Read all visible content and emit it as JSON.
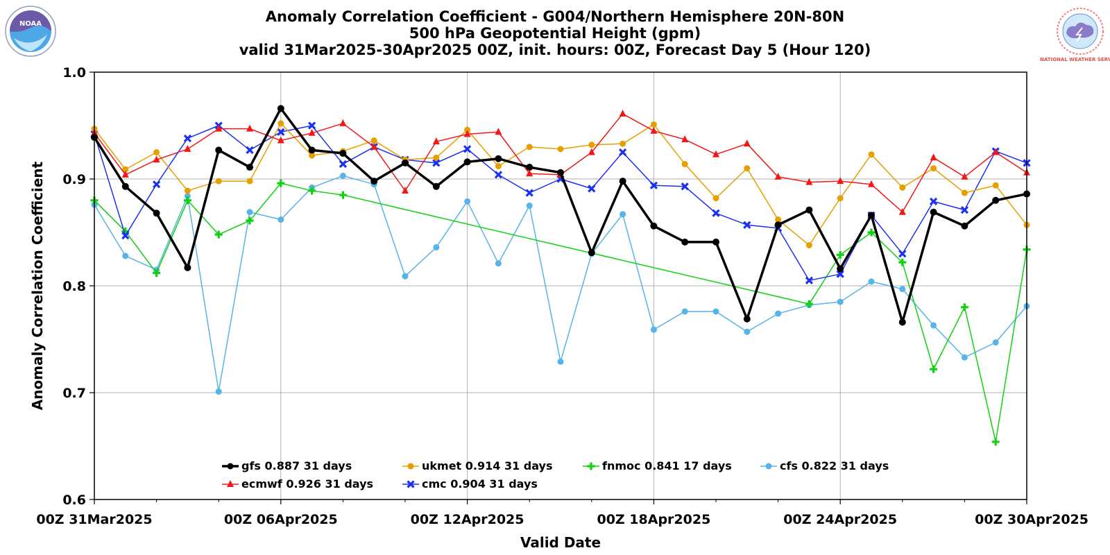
{
  "chart_data": {
    "type": "line",
    "title": [
      "Anomaly Correlation Coefficient - G004/Northern Hemisphere 20N-80N",
      "500 hPa Geopotential Height (gpm)",
      "valid 31Mar2025-30Apr2025 00Z, init. hours: 00Z, Forecast Day 5 (Hour 120)"
    ],
    "xlabel": "Valid Date",
    "ylabel": "Anomaly Correlation Coefficient",
    "ylim": [
      0.6,
      1.0
    ],
    "yticks": [
      "0.6",
      "0.7",
      "0.8",
      "0.9",
      "1.0"
    ],
    "xticks": [
      "00Z 31Mar2025",
      "00Z 06Apr2025",
      "00Z 12Apr2025",
      "00Z 18Apr2025",
      "00Z 24Apr2025",
      "00Z 30Apr2025"
    ],
    "grid": true,
    "legend_position": "bottom-center",
    "x": [
      "31Mar",
      "01Apr",
      "02Apr",
      "03Apr",
      "04Apr",
      "05Apr",
      "06Apr",
      "07Apr",
      "08Apr",
      "09Apr",
      "10Apr",
      "11Apr",
      "12Apr",
      "13Apr",
      "14Apr",
      "15Apr",
      "16Apr",
      "17Apr",
      "18Apr",
      "19Apr",
      "20Apr",
      "21Apr",
      "22Apr",
      "23Apr",
      "24Apr",
      "25Apr",
      "26Apr",
      "27Apr",
      "28Apr",
      "29Apr",
      "30Apr"
    ],
    "series": [
      {
        "name": "gfs",
        "label": "gfs 0.887 31 days",
        "color": "#000000",
        "marker": "circle",
        "width": 3.5,
        "values": [
          0.939,
          0.893,
          0.868,
          0.817,
          0.927,
          0.911,
          0.966,
          0.927,
          0.924,
          0.898,
          0.915,
          0.893,
          0.916,
          0.919,
          0.911,
          0.906,
          0.831,
          0.898,
          0.856,
          0.841,
          0.841,
          0.769,
          0.857,
          0.871,
          0.816,
          0.866,
          0.766,
          0.869,
          0.856,
          0.88,
          0.886
        ]
      },
      {
        "name": "ecmwf",
        "label": "ecmwf 0.926 31 days",
        "color": "#f01818",
        "marker": "triangle",
        "width": 1.5,
        "values": [
          0.943,
          0.904,
          0.918,
          0.928,
          0.947,
          0.947,
          0.936,
          0.943,
          0.952,
          0.93,
          0.889,
          0.935,
          0.942,
          0.944,
          0.905,
          0.904,
          0.925,
          0.961,
          0.945,
          0.937,
          0.923,
          0.933,
          0.902,
          0.897,
          0.898,
          0.895,
          0.869,
          0.92,
          0.902,
          0.925,
          0.906
        ]
      },
      {
        "name": "ukmet",
        "label": "ukmet 0.914 31 days",
        "color": "#e69f00",
        "marker": "circle",
        "width": 1.5,
        "values": [
          0.947,
          0.909,
          0.925,
          0.889,
          0.898,
          0.898,
          0.952,
          0.922,
          0.926,
          0.936,
          0.918,
          0.92,
          0.946,
          0.912,
          0.93,
          0.928,
          0.932,
          0.933,
          0.951,
          0.914,
          0.882,
          0.91,
          0.862,
          0.838,
          0.882,
          0.923,
          0.892,
          0.91,
          0.887,
          0.894,
          0.857
        ]
      },
      {
        "name": "cmc",
        "label": "cmc 0.904 31 days",
        "color": "#1c30f0",
        "marker": "x",
        "width": 1.5,
        "values": [
          0.942,
          0.847,
          0.895,
          0.938,
          0.95,
          0.927,
          0.944,
          0.95,
          0.914,
          0.93,
          0.918,
          0.915,
          0.928,
          0.904,
          0.887,
          0.9,
          0.891,
          0.925,
          0.894,
          0.893,
          0.868,
          0.857,
          0.854,
          0.805,
          0.811,
          0.866,
          0.83,
          0.879,
          0.871,
          0.926,
          0.915
        ]
      },
      {
        "name": "fnmoc",
        "label": "fnmoc 0.841 17 days",
        "color": "#10d010",
        "marker": "plus",
        "width": 1.5,
        "values": [
          0.88,
          0.851,
          0.812,
          0.88,
          0.848,
          0.861,
          0.896,
          0.889,
          0.885,
          null,
          null,
          null,
          null,
          null,
          null,
          null,
          null,
          null,
          null,
          null,
          null,
          null,
          null,
          0.783,
          0.829,
          0.85,
          0.822,
          0.722,
          0.78,
          0.654,
          0.834
        ]
      },
      {
        "name": "cfs",
        "label": "cfs 0.822 31 days",
        "color": "#56b4e9",
        "marker": "circle",
        "width": 1.5,
        "values": [
          0.876,
          0.828,
          0.815,
          0.884,
          0.701,
          0.869,
          0.862,
          0.892,
          0.903,
          0.895,
          0.809,
          0.836,
          0.879,
          0.821,
          0.875,
          0.729,
          0.83,
          0.867,
          0.759,
          0.776,
          0.776,
          0.757,
          0.774,
          0.782,
          0.785,
          0.804,
          0.797,
          0.763,
          0.733,
          0.747,
          0.781
        ]
      }
    ],
    "legend_rows": [
      [
        "gfs",
        "ukmet",
        "fnmoc",
        "cfs"
      ],
      [
        "ecmwf",
        "cmc"
      ]
    ],
    "logos": [
      {
        "name": "NOAA"
      },
      {
        "name": "NATIONAL WEATHER SERVICE"
      }
    ]
  }
}
